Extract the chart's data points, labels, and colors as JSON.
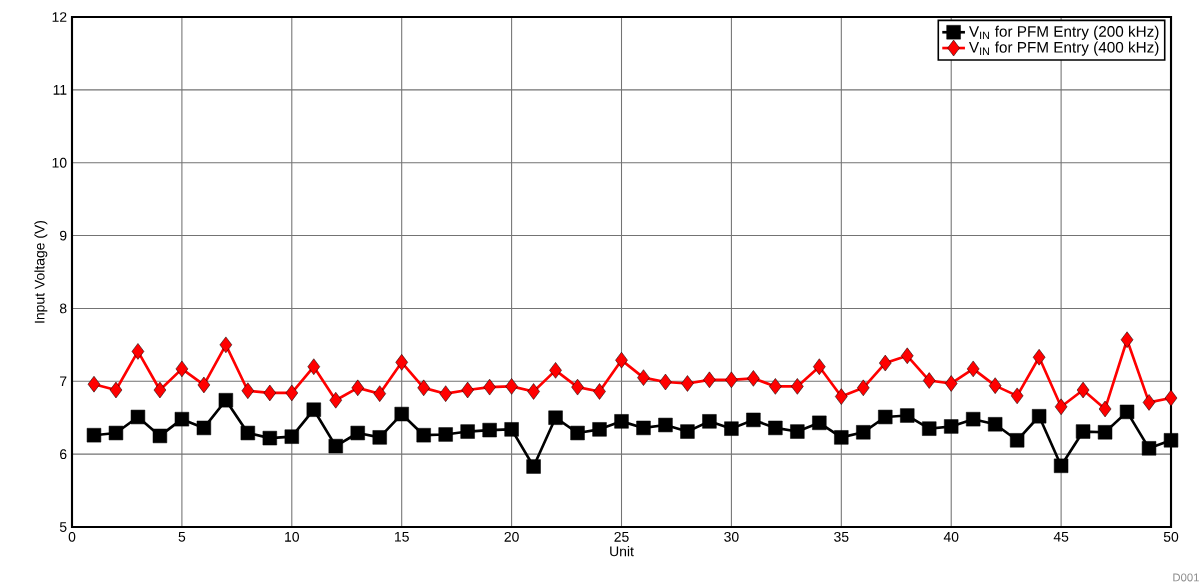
{
  "chart_data": {
    "type": "line",
    "xlabel": "Unit",
    "ylabel": "Input Voltage (V)",
    "x": [
      1,
      2,
      3,
      4,
      5,
      6,
      7,
      8,
      9,
      10,
      11,
      12,
      13,
      14,
      15,
      16,
      17,
      18,
      19,
      20,
      21,
      22,
      23,
      24,
      25,
      26,
      27,
      28,
      29,
      30,
      31,
      32,
      33,
      34,
      35,
      36,
      37,
      38,
      39,
      40,
      41,
      42,
      43,
      44,
      45,
      46,
      47,
      48,
      49,
      50
    ],
    "series": [
      {
        "name": "V$_{IN}$ for PFM Entry (200 kHz)",
        "color": "#000000",
        "marker": "square",
        "values": [
          6.26,
          6.29,
          6.51,
          6.25,
          6.48,
          6.36,
          6.74,
          6.29,
          6.22,
          6.24,
          6.61,
          6.11,
          6.29,
          6.23,
          6.55,
          6.26,
          6.27,
          6.31,
          6.33,
          6.34,
          5.83,
          6.5,
          6.29,
          6.34,
          6.45,
          6.36,
          6.4,
          6.31,
          6.45,
          6.35,
          6.47,
          6.36,
          6.31,
          6.43,
          6.23,
          6.3,
          6.51,
          6.53,
          6.35,
          6.38,
          6.48,
          6.41,
          6.19,
          6.52,
          5.84,
          6.31,
          6.3,
          6.58,
          6.08,
          6.19
        ]
      },
      {
        "name": "V$_{IN}$ for PFM Entry (400 kHz)",
        "color": "#ff0000",
        "marker": "diamond",
        "values": [
          6.96,
          6.88,
          7.41,
          6.88,
          7.17,
          6.95,
          7.5,
          6.87,
          6.84,
          6.84,
          7.2,
          6.74,
          6.91,
          6.83,
          7.26,
          6.91,
          6.83,
          6.88,
          6.92,
          6.93,
          6.86,
          7.15,
          6.92,
          6.86,
          7.29,
          7.05,
          6.99,
          6.97,
          7.02,
          7.02,
          7.04,
          6.93,
          6.93,
          7.2,
          6.79,
          6.91,
          7.25,
          7.35,
          7.01,
          6.97,
          7.17,
          6.94,
          6.8,
          7.33,
          6.65,
          6.88,
          6.62,
          7.57,
          6.71,
          6.77
        ]
      }
    ],
    "xlim": [
      0,
      50
    ],
    "xticks": [
      0,
      5,
      10,
      15,
      20,
      25,
      30,
      35,
      40,
      45,
      50
    ],
    "ylim": [
      5,
      12
    ],
    "yticks": [
      5,
      6,
      7,
      8,
      9,
      10,
      11,
      12
    ],
    "grid": true,
    "legend": "top right",
    "line_style": "solid",
    "annotations": [
      "D001"
    ]
  }
}
